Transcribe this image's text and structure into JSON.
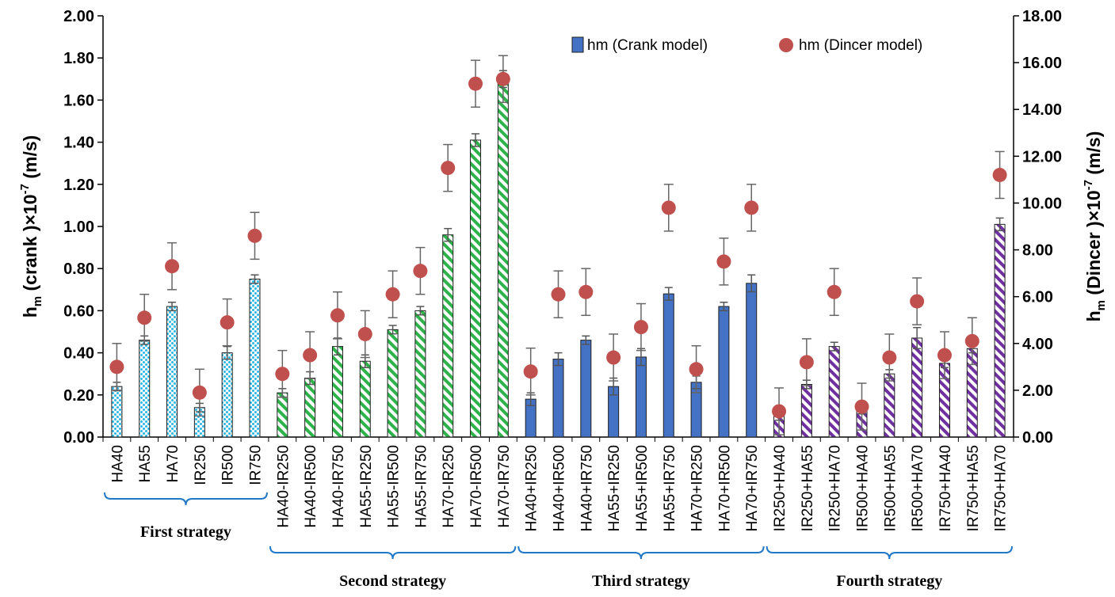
{
  "chart_data": {
    "type": "bar",
    "ylabel_left": "h",
    "ylabel_left_sub": "m",
    "ylabel_left_rest": " (crank )×10",
    "ylabel_left_sup": "-7",
    "ylabel_left_unit": " (m/s)",
    "ylabel_right": "h",
    "ylabel_right_sub": "m",
    "ylabel_right_rest": " (Dincer )×10",
    "ylabel_right_sup": "-7",
    "ylabel_right_unit": " (m/s)",
    "ylim_left": [
      0,
      2.0
    ],
    "ylim_right": [
      0,
      18.0
    ],
    "yticks_left": [
      "0.00",
      "0.20",
      "0.40",
      "0.60",
      "0.80",
      "1.00",
      "1.20",
      "1.40",
      "1.60",
      "1.80",
      "2.00"
    ],
    "yticks_right": [
      "0.00",
      "2.00",
      "4.00",
      "6.00",
      "8.00",
      "10.00",
      "12.00",
      "14.00",
      "16.00",
      "18.00"
    ],
    "legend": {
      "bar": "hm (Crank model)",
      "dot": "hm (Dincer model)",
      "placement": "top-right"
    },
    "colors": {
      "first": "#29b6e6",
      "second": "#2db34a",
      "third": "#4472c4",
      "fourth": "#7030a0",
      "dot": "#c0504d",
      "bar_edge": "#1f1f1f"
    },
    "groups": [
      {
        "name": "First strategy",
        "pattern": "dots",
        "start": 0,
        "end": 5
      },
      {
        "name": "Second strategy",
        "pattern": "stripe",
        "start": 6,
        "end": 14
      },
      {
        "name": "Third strategy",
        "pattern": "solid",
        "start": 15,
        "end": 23
      },
      {
        "name": "Fourth strategy",
        "pattern": "stripe",
        "start": 24,
        "end": 32
      }
    ],
    "categories": [
      "HA40",
      "HA55",
      "HA70",
      "IR250",
      "IR500",
      "IR750",
      "HA40-IR250",
      "HA40-IR500",
      "HA40-IR750",
      "HA55-IR250",
      "HA55-IR500",
      "HA55-IR750",
      "HA70-IR250",
      "HA70-IR500",
      "HA70-IR750",
      "HA40+IR250",
      "HA40+IR500",
      "HA40+IR750",
      "HA55+IR250",
      "HA55+IR500",
      "HA55+IR750",
      "HA70+IR250",
      "HA70+IR500",
      "HA70+IR750",
      "IR250+HA40",
      "IR250+HA55",
      "IR250+HA70",
      "IR500+HA40",
      "IR500+HA55",
      "IR500+HA70",
      "IR750+HA40",
      "IR750+HA55",
      "IR750+HA70"
    ],
    "series": [
      {
        "name": "hm (Crank model)",
        "axis": "left",
        "values": [
          0.24,
          0.46,
          0.62,
          0.14,
          0.4,
          0.75,
          0.21,
          0.28,
          0.43,
          0.36,
          0.51,
          0.6,
          0.96,
          1.41,
          1.7,
          0.18,
          0.37,
          0.46,
          0.24,
          0.38,
          0.68,
          0.26,
          0.62,
          0.73,
          0.1,
          0.25,
          0.43,
          0.13,
          0.3,
          0.47,
          0.35,
          0.42,
          1.01
        ],
        "error": [
          0.02,
          0.02,
          0.02,
          0.02,
          0.03,
          0.02,
          0.02,
          0.03,
          0.04,
          0.03,
          0.02,
          0.02,
          0.03,
          0.03,
          0.04,
          0.03,
          0.03,
          0.02,
          0.04,
          0.04,
          0.03,
          0.03,
          0.02,
          0.04,
          0.02,
          0.02,
          0.02,
          0.02,
          0.02,
          0.05,
          0.02,
          0.02,
          0.03
        ]
      },
      {
        "name": "hm (Dincer model)",
        "axis": "right",
        "values": [
          3.0,
          5.1,
          7.3,
          1.9,
          4.9,
          8.6,
          2.7,
          3.5,
          5.2,
          4.4,
          6.1,
          7.1,
          11.5,
          15.1,
          15.3,
          2.8,
          6.1,
          6.2,
          3.4,
          4.7,
          9.8,
          2.9,
          7.5,
          9.8,
          1.1,
          3.2,
          6.2,
          1.3,
          3.4,
          5.8,
          3.5,
          4.1,
          11.2
        ],
        "error": [
          1.0,
          1.0,
          1.0,
          1.0,
          1.0,
          1.0,
          1.0,
          1.0,
          1.0,
          1.0,
          1.0,
          1.0,
          1.0,
          1.0,
          1.0,
          1.0,
          1.0,
          1.0,
          1.0,
          1.0,
          1.0,
          1.0,
          1.0,
          1.0,
          1.0,
          1.0,
          1.0,
          1.0,
          1.0,
          1.0,
          1.0,
          1.0,
          1.0
        ]
      }
    ]
  }
}
